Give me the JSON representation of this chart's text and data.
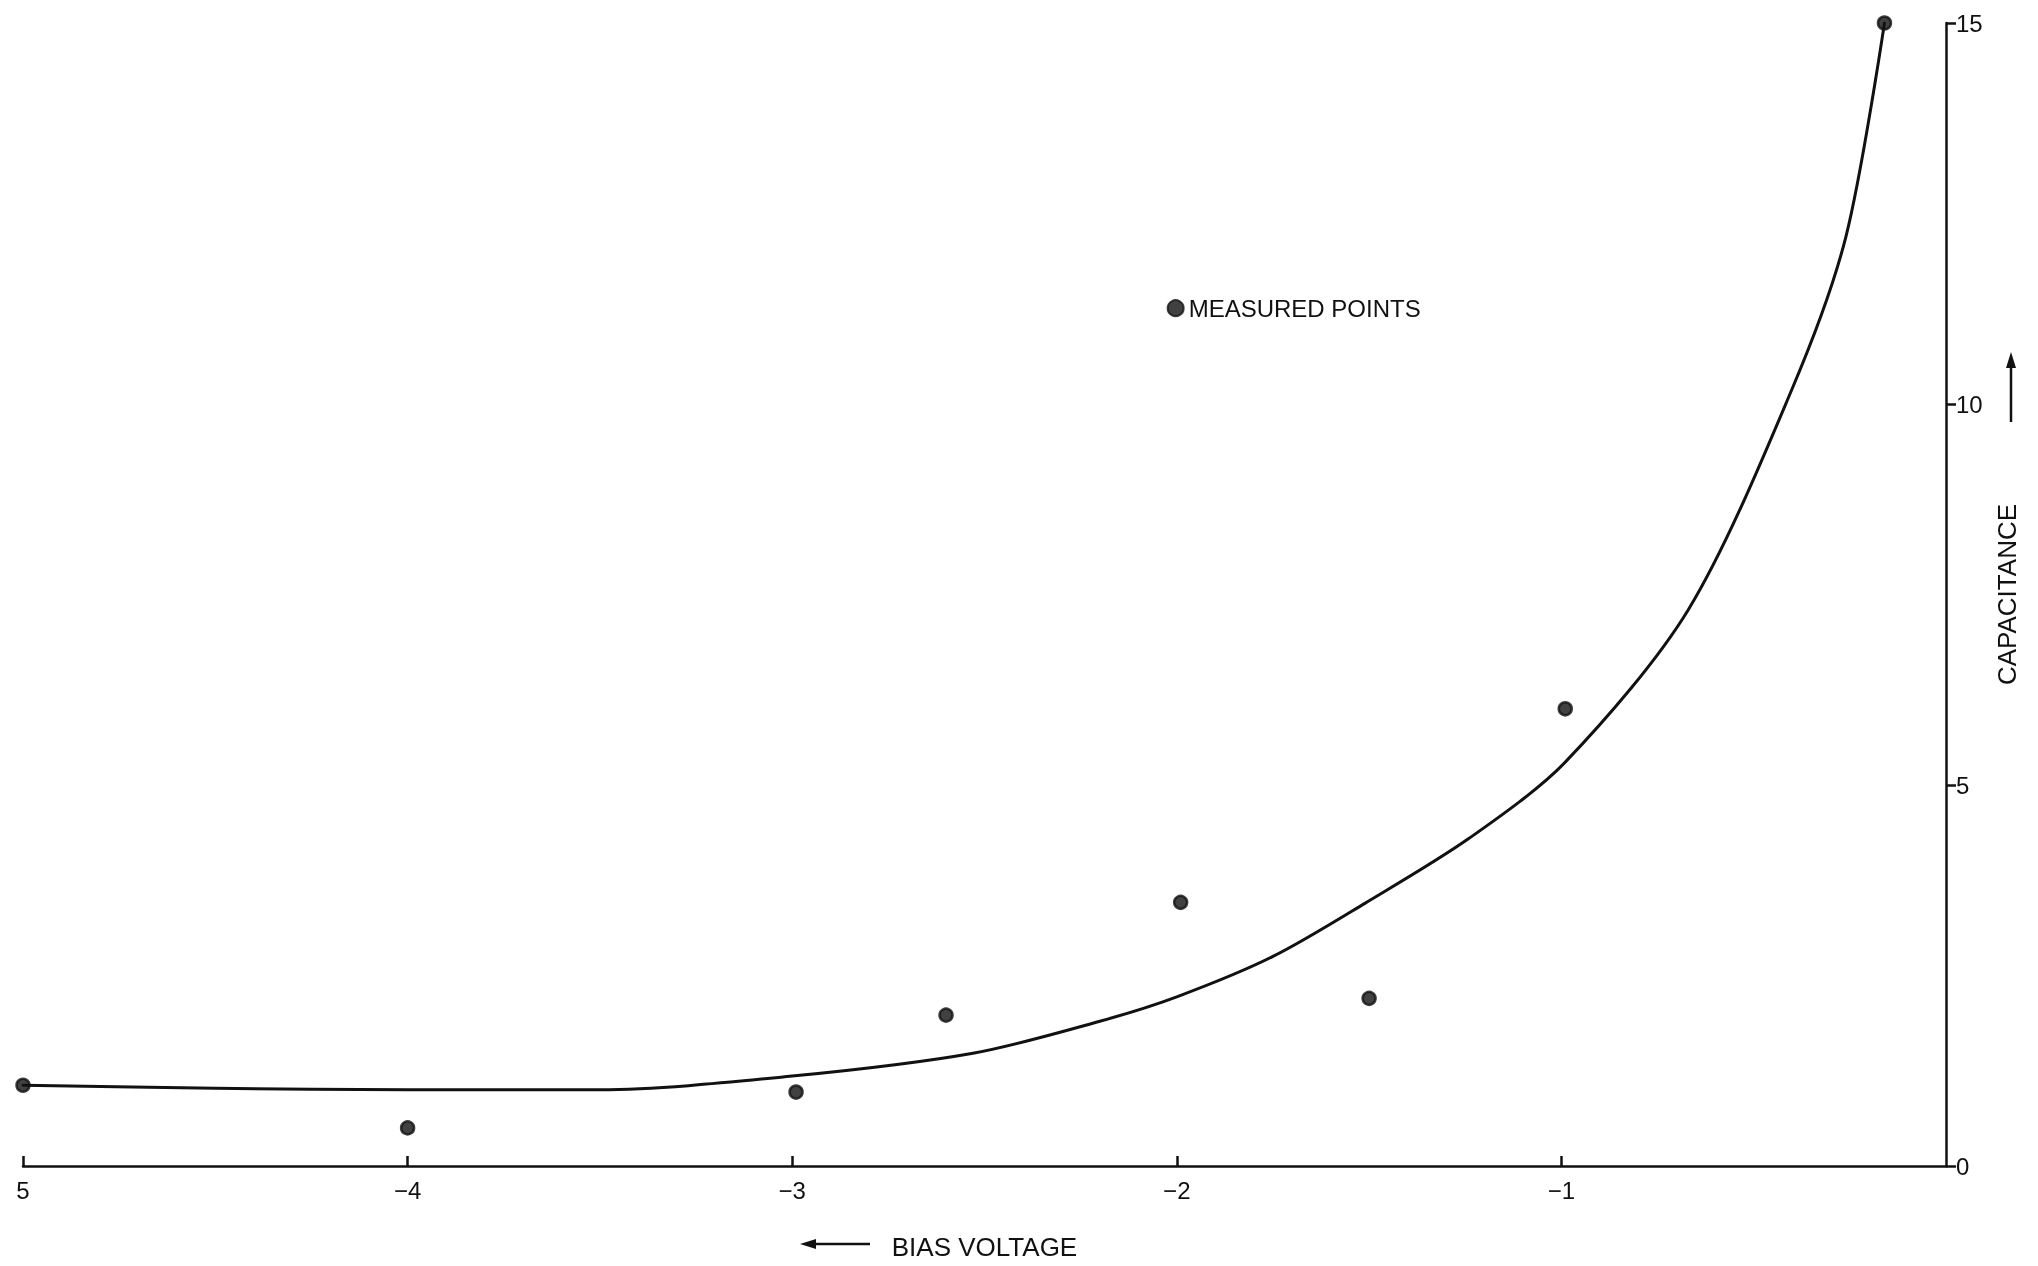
{
  "chart_data": {
    "type": "scatter",
    "xlabel": "BIAS VOLTAGE",
    "ylabel": "CAPACITANCE",
    "xlim": [
      -5,
      0
    ],
    "ylim": [
      0,
      15
    ],
    "xticks": [
      {
        "value": -5,
        "label": "5"
      },
      {
        "value": -4,
        "label": "−4"
      },
      {
        "value": -3,
        "label": "−3"
      },
      {
        "value": -2,
        "label": "−2"
      },
      {
        "value": -1,
        "label": "−1"
      }
    ],
    "yticks": [
      0,
      5,
      10,
      15
    ],
    "grid": false,
    "legend": "top",
    "series": [
      {
        "name": "MEASURED POINTS",
        "marker": "circle",
        "color": "#111111",
        "x": [
          -5,
          -4,
          -2.99,
          -2.6,
          -1.99,
          -1.5,
          -0.99,
          -0.16
        ],
        "values": [
          1.06,
          0.5,
          0.97,
          1.98,
          3.46,
          2.2,
          6.0,
          15
        ]
      },
      {
        "type": "line",
        "marker": "none",
        "line_style": "solid",
        "color": "#111111",
        "x": [
          -5,
          -4.5,
          -4,
          -3.5,
          -3,
          -2.53,
          -2.2,
          -2,
          -1.75,
          -1.51,
          -1.24,
          -0.99,
          -0.67,
          -0.4,
          -0.26,
          -0.16
        ],
        "values": [
          1.06,
          1.02,
          1.0,
          1.0,
          1.18,
          1.48,
          1.9,
          2.22,
          2.75,
          3.45,
          4.3,
          5.3,
          7.3,
          10.2,
          12.2,
          15
        ]
      }
    ]
  }
}
